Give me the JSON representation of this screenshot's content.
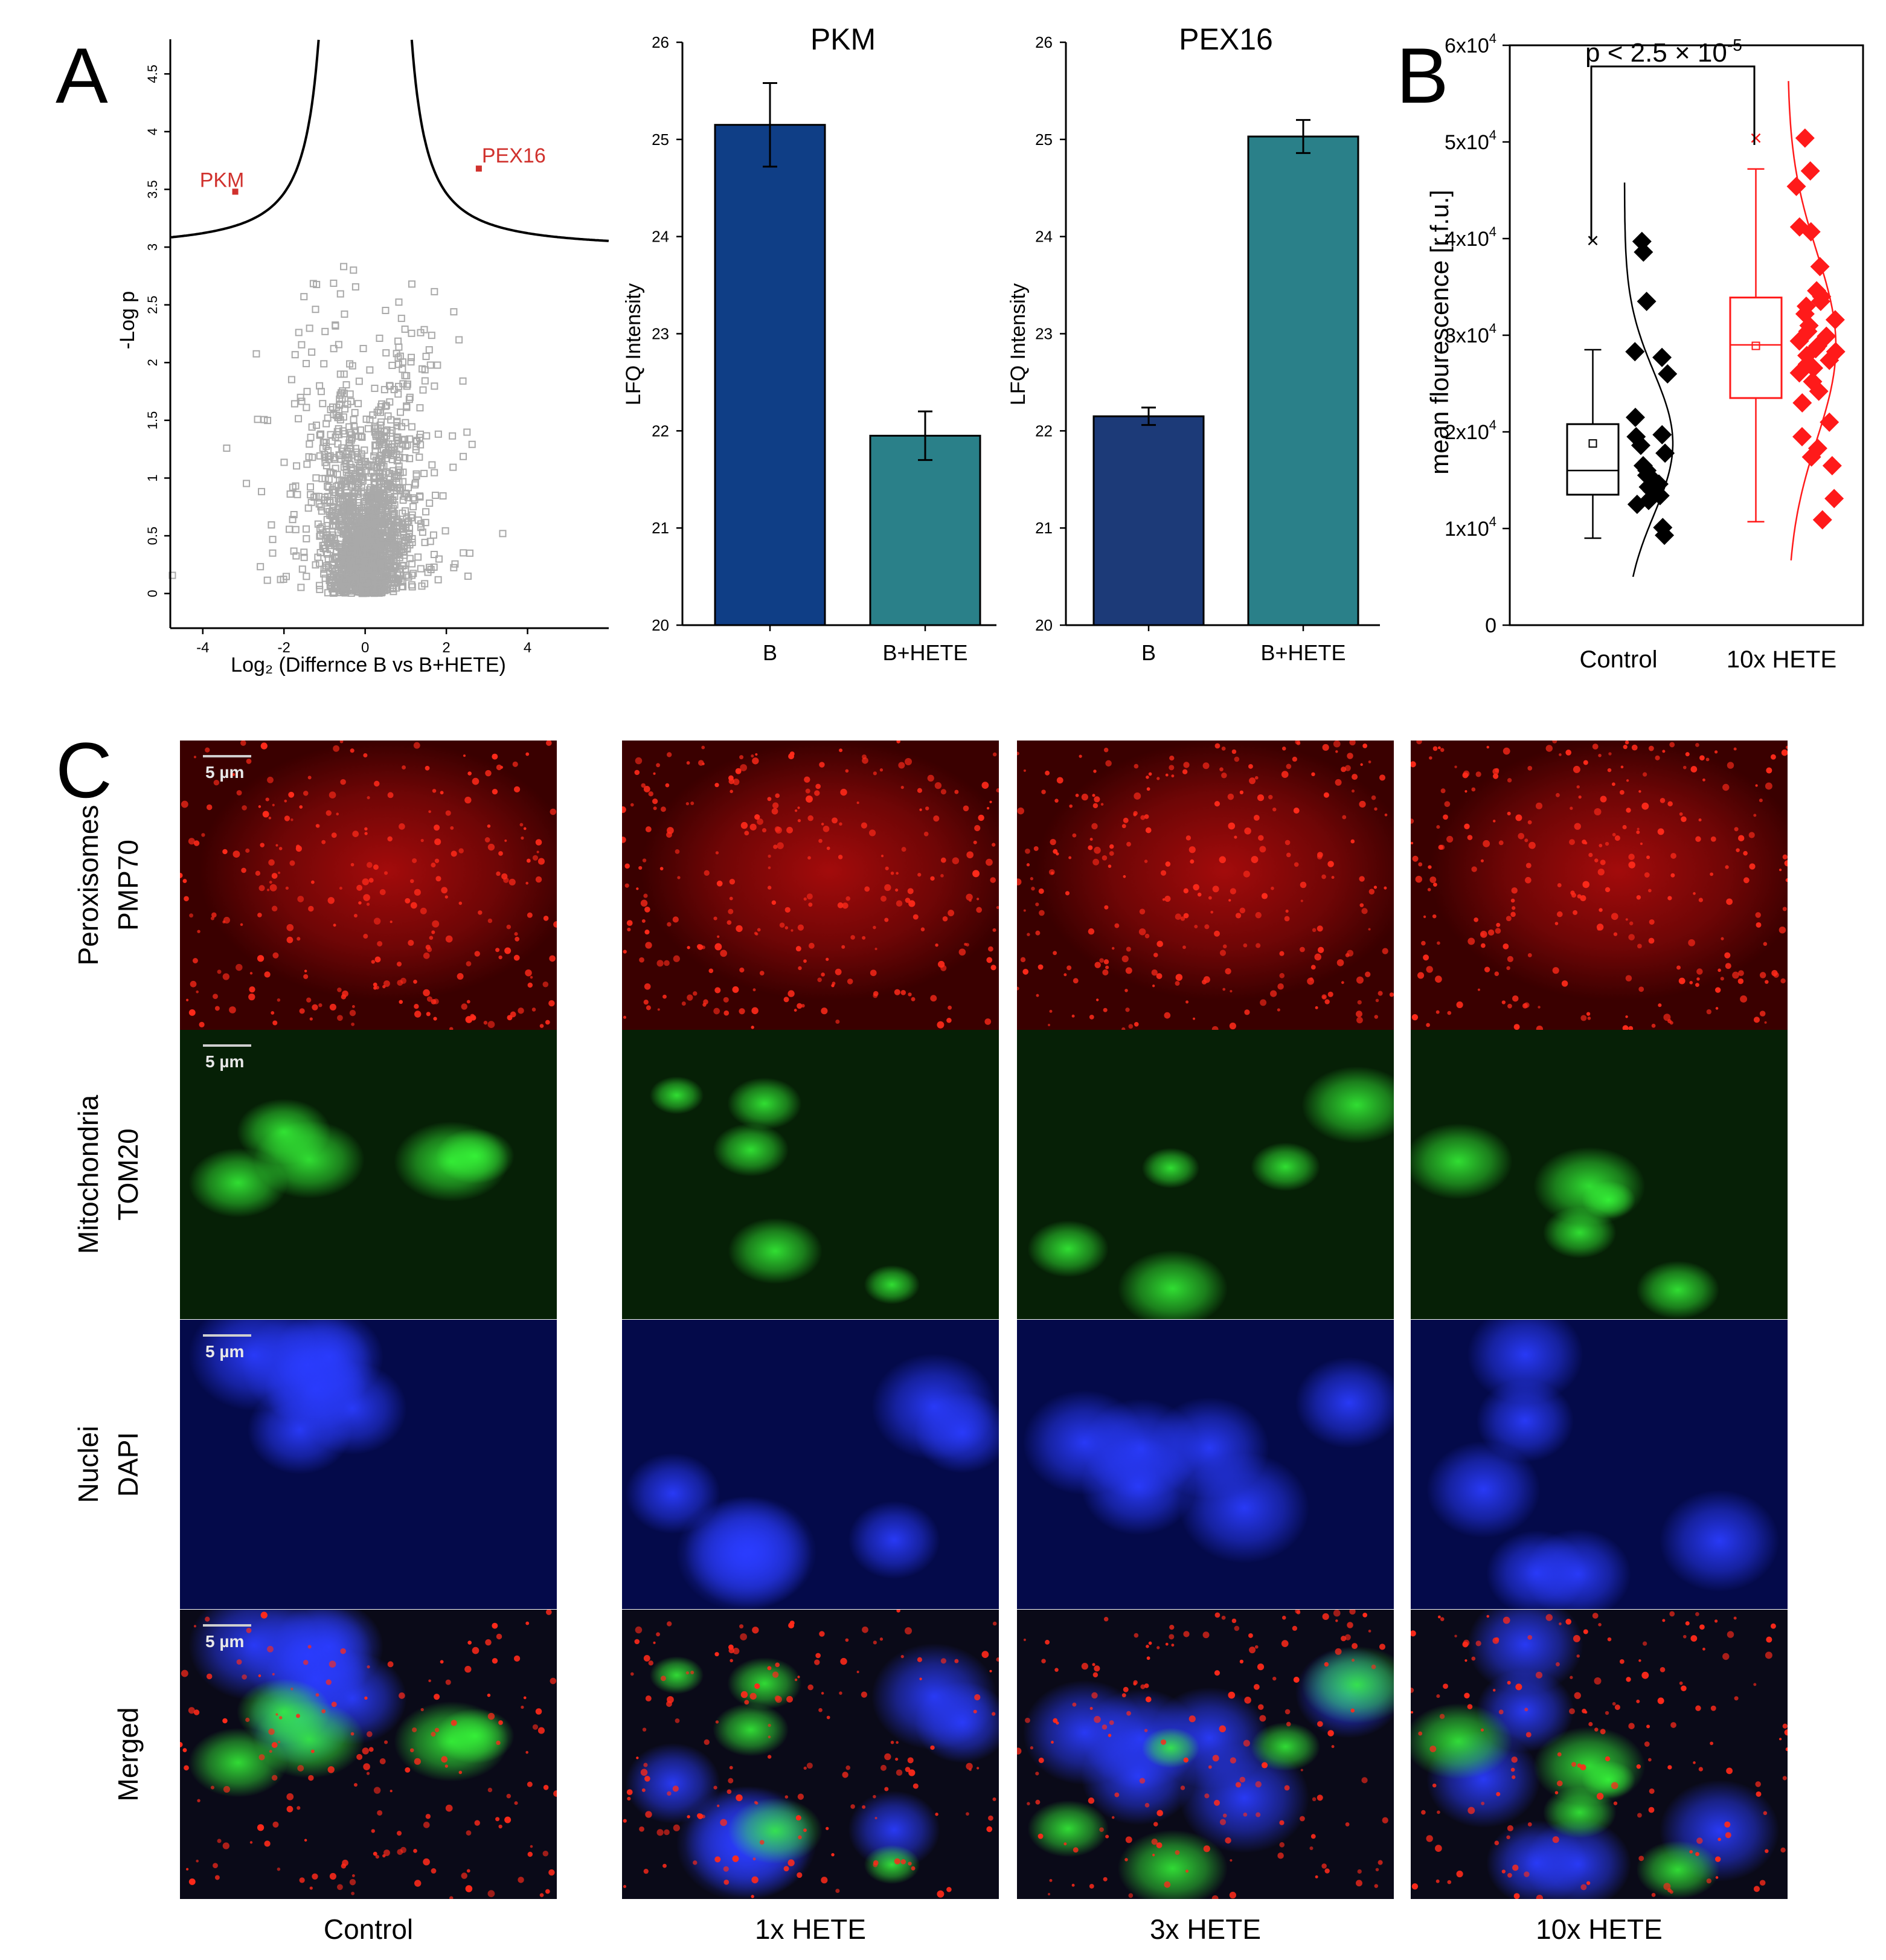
{
  "panel_labels": {
    "a": "A",
    "b": "B",
    "c": "C"
  },
  "chart_data": [
    {
      "type": "scatter",
      "id": "volcano",
      "xlabel": "Log₂ (Differnce B vs B+HETE)",
      "ylabel": "-Log p",
      "xlim": [
        -4.8,
        6.0
      ],
      "ylim": [
        -0.3,
        4.8
      ],
      "xticks": [
        "-4",
        "-2",
        "0",
        "2",
        "4"
      ],
      "yticks": [
        "0",
        "0.5",
        "1",
        "1.5",
        "2",
        "2.5",
        "3",
        "3.5",
        "4",
        "4.5"
      ],
      "highlighted": [
        {
          "label": "PKM",
          "x": -3.2,
          "y": 3.48
        },
        {
          "label": "PEX16",
          "x": 2.8,
          "y": 3.68
        }
      ],
      "point_color": "#a9a9a9",
      "highlight_color": "#d0312d"
    },
    {
      "type": "bar",
      "id": "pkm",
      "title": "PKM",
      "ylabel": "LFQ Intensity",
      "ylim": [
        20,
        26
      ],
      "yticks": [
        "20",
        "21",
        "22",
        "23",
        "24",
        "25",
        "26"
      ],
      "categories": [
        "B",
        "B+HETE"
      ],
      "values": [
        25.15,
        21.95
      ],
      "errors": [
        0.43,
        0.25
      ],
      "colors": [
        "#0f3e86",
        "#2a8089"
      ]
    },
    {
      "type": "bar",
      "id": "pex16",
      "title": "PEX16",
      "ylabel": "LFQ Intensity",
      "ylim": [
        20,
        26
      ],
      "yticks": [
        "20",
        "21",
        "22",
        "23",
        "24",
        "25",
        "26"
      ],
      "categories": [
        "B",
        "B+HETE"
      ],
      "values": [
        22.15,
        25.03
      ],
      "errors": [
        0.09,
        0.17
      ],
      "colors": [
        "#1c3a78",
        "#2a8089"
      ]
    },
    {
      "type": "box",
      "id": "fluorescence",
      "ylabel": "mean flourescence [r.f.u.]",
      "ylim": [
        0,
        60000
      ],
      "yticks": [
        {
          "base": "0",
          "exp": ""
        },
        {
          "base": "1x10",
          "exp": "4"
        },
        {
          "base": "2x10",
          "exp": "4"
        },
        {
          "base": "3x10",
          "exp": "4"
        },
        {
          "base": "4x10",
          "exp": "4"
        },
        {
          "base": "5x10",
          "exp": "4"
        },
        {
          "base": "6x10",
          "exp": "4"
        }
      ],
      "significance": {
        "base": "p < 2.5 × 10",
        "exp": "-5"
      },
      "groups": [
        {
          "name": "Control",
          "color": "#000000",
          "q1": 13500,
          "median": 16000,
          "q3": 20800,
          "mean": 18800,
          "whisker_low": 9000,
          "whisker_high": 28500,
          "outlier": 39800,
          "points": [
            39700,
            38600,
            33500,
            28300,
            27700,
            26000,
            21500,
            19700,
            19500,
            18600,
            17800,
            16500,
            16000,
            15500,
            15000,
            14600,
            14300,
            13900,
            13400,
            12900,
            12500,
            10100,
            9300
          ]
        },
        {
          "name": "10x HETE",
          "color": "#ff1a1a",
          "q1": 23500,
          "median": 29000,
          "q3": 33900,
          "mean": 28900,
          "whisker_low": 10700,
          "whisker_high": 47200,
          "outlier": 50400,
          "points": [
            50400,
            47000,
            45400,
            41200,
            40700,
            37100,
            34600,
            34000,
            33500,
            33000,
            32200,
            31600,
            31000,
            30400,
            29900,
            29400,
            28900,
            28600,
            28300,
            27900,
            27400,
            27000,
            26600,
            26100,
            25200,
            24200,
            23000,
            21000,
            19500,
            18300,
            17400,
            16500,
            13100,
            10900
          ]
        }
      ]
    }
  ],
  "micrographs": {
    "scale_label": "5 µm",
    "rows": [
      {
        "label_lines": [
          "Peroxisomes",
          "PMP70"
        ],
        "channel": "red"
      },
      {
        "label_lines": [
          "Mitochondria",
          "TOM20"
        ],
        "channel": "green"
      },
      {
        "label_lines": [
          "Nuclei",
          "DAPI"
        ],
        "channel": "blue"
      },
      {
        "label_lines": [
          "Merged"
        ],
        "channel": "merged"
      }
    ],
    "columns": [
      "Control",
      "1x HETE",
      "3x HETE",
      "10x HETE"
    ]
  }
}
